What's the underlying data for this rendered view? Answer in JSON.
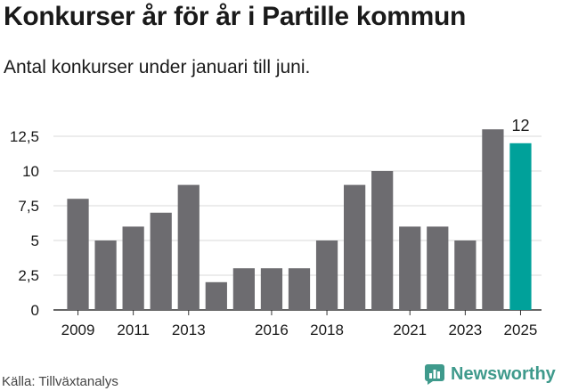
{
  "title": "Konkurser år för år i Partille kommun",
  "subtitle": "Antal konkurser under januari till juni.",
  "source": "Källa: Tillväxtanalys",
  "brand": {
    "name": "Newsworthy",
    "color": "#3f9a8c"
  },
  "colors": {
    "bar": "#6d6c70",
    "highlight": "#00a19a",
    "grid": "#d9d9d9",
    "axis": "#333333"
  },
  "chart_data": {
    "type": "bar",
    "categories": [
      "2009",
      "2010",
      "2011",
      "2012",
      "2013",
      "2014",
      "2015",
      "2016",
      "2017",
      "2018",
      "2019",
      "2020",
      "2021",
      "2022",
      "2023",
      "2024",
      "2025"
    ],
    "values": [
      8,
      5,
      6,
      7,
      9,
      2,
      3,
      3,
      3,
      5,
      9,
      10,
      6,
      6,
      5,
      13,
      12
    ],
    "highlight_category": "2025",
    "x_tick_labels": [
      "2009",
      "2011",
      "2013",
      "2016",
      "2018",
      "2021",
      "2023",
      "2025"
    ],
    "y_ticks": [
      0,
      2.5,
      5,
      7.5,
      10,
      12.5
    ],
    "y_tick_labels": [
      "0",
      "2,5",
      "5",
      "7,5",
      "10",
      "12,5"
    ],
    "ylim": [
      0,
      13.6
    ],
    "data_labels": [
      {
        "category": "2025",
        "text": "12"
      }
    ],
    "grid": true,
    "legend": "none"
  }
}
